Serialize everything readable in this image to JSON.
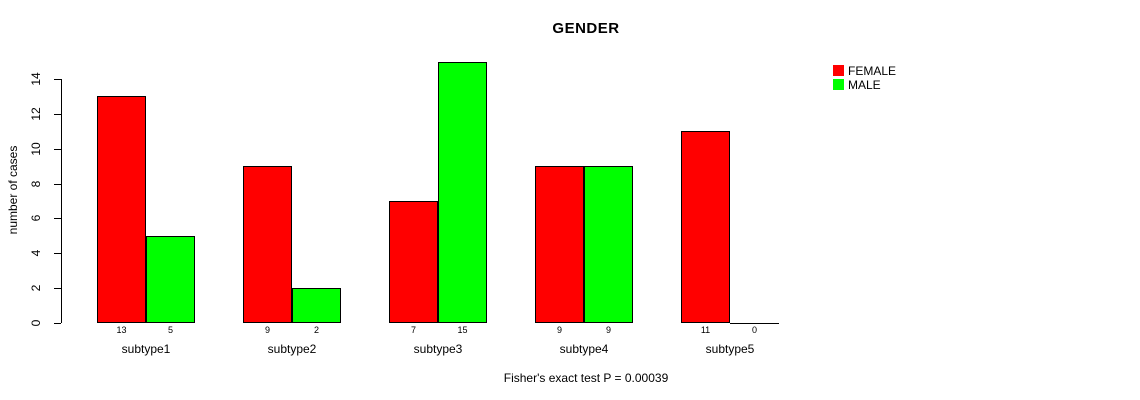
{
  "chart_data": {
    "type": "bar",
    "title": "GENDER",
    "categories": [
      "subtype1",
      "subtype2",
      "subtype3",
      "subtype4",
      "subtype5"
    ],
    "series": [
      {
        "name": "FEMALE",
        "color": "#ff0000",
        "values": [
          13,
          9,
          7,
          9,
          11
        ]
      },
      {
        "name": "MALE",
        "color": "#00ff00",
        "values": [
          5,
          2,
          15,
          9,
          0
        ]
      }
    ],
    "xlabel": "",
    "ylabel": "number of cases",
    "ylim": [
      0,
      14
    ],
    "yticks": [
      0,
      2,
      4,
      6,
      8,
      10,
      12,
      14
    ],
    "bar_value_labels_shown": true,
    "grid": false,
    "legend_position": "top-right",
    "annotation": "Fisher's exact test P = 0.00039"
  },
  "colors": {
    "female": "#ff0000",
    "male": "#00ff00",
    "axis": "#000000",
    "background": "#ffffff"
  }
}
